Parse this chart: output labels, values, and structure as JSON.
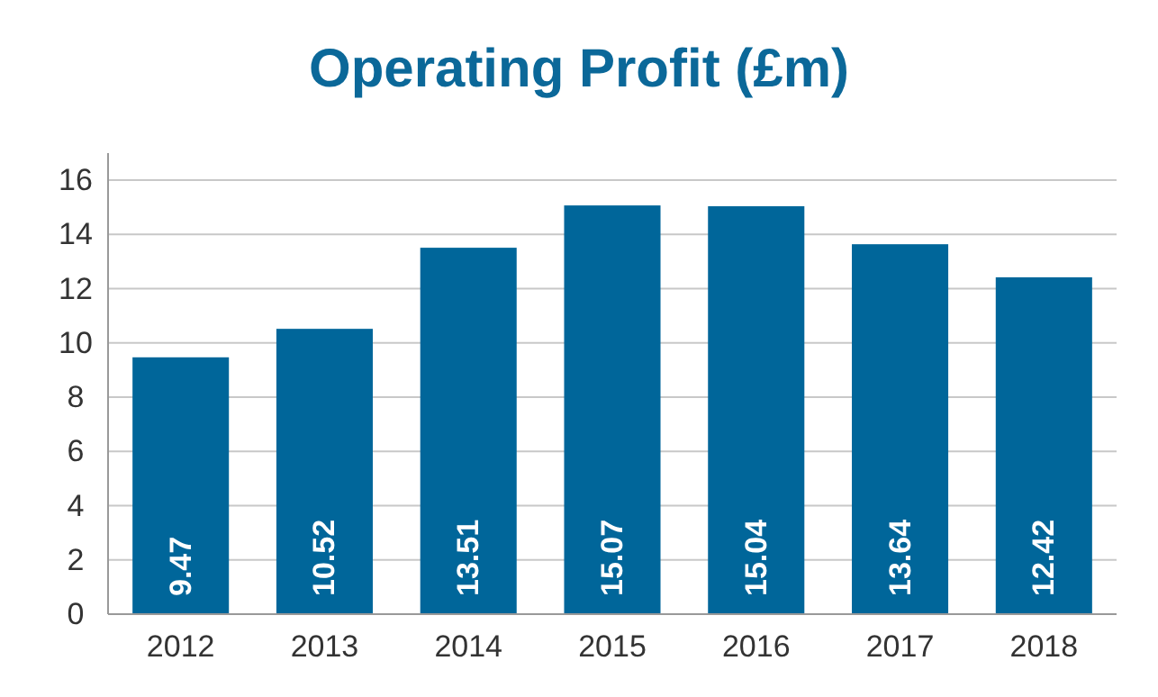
{
  "chart_data": {
    "type": "bar",
    "title": "Operating Profit (£m)",
    "categories": [
      "2012",
      "2013",
      "2014",
      "2015",
      "2016",
      "2017",
      "2018"
    ],
    "values": [
      9.47,
      10.52,
      13.51,
      15.07,
      15.04,
      13.64,
      12.42
    ],
    "color": "#00669a",
    "ylim": [
      0,
      17
    ],
    "yticks": [
      0,
      2,
      4,
      6,
      8,
      10,
      12,
      14,
      16
    ],
    "grid": "y",
    "data_labels": true
  }
}
